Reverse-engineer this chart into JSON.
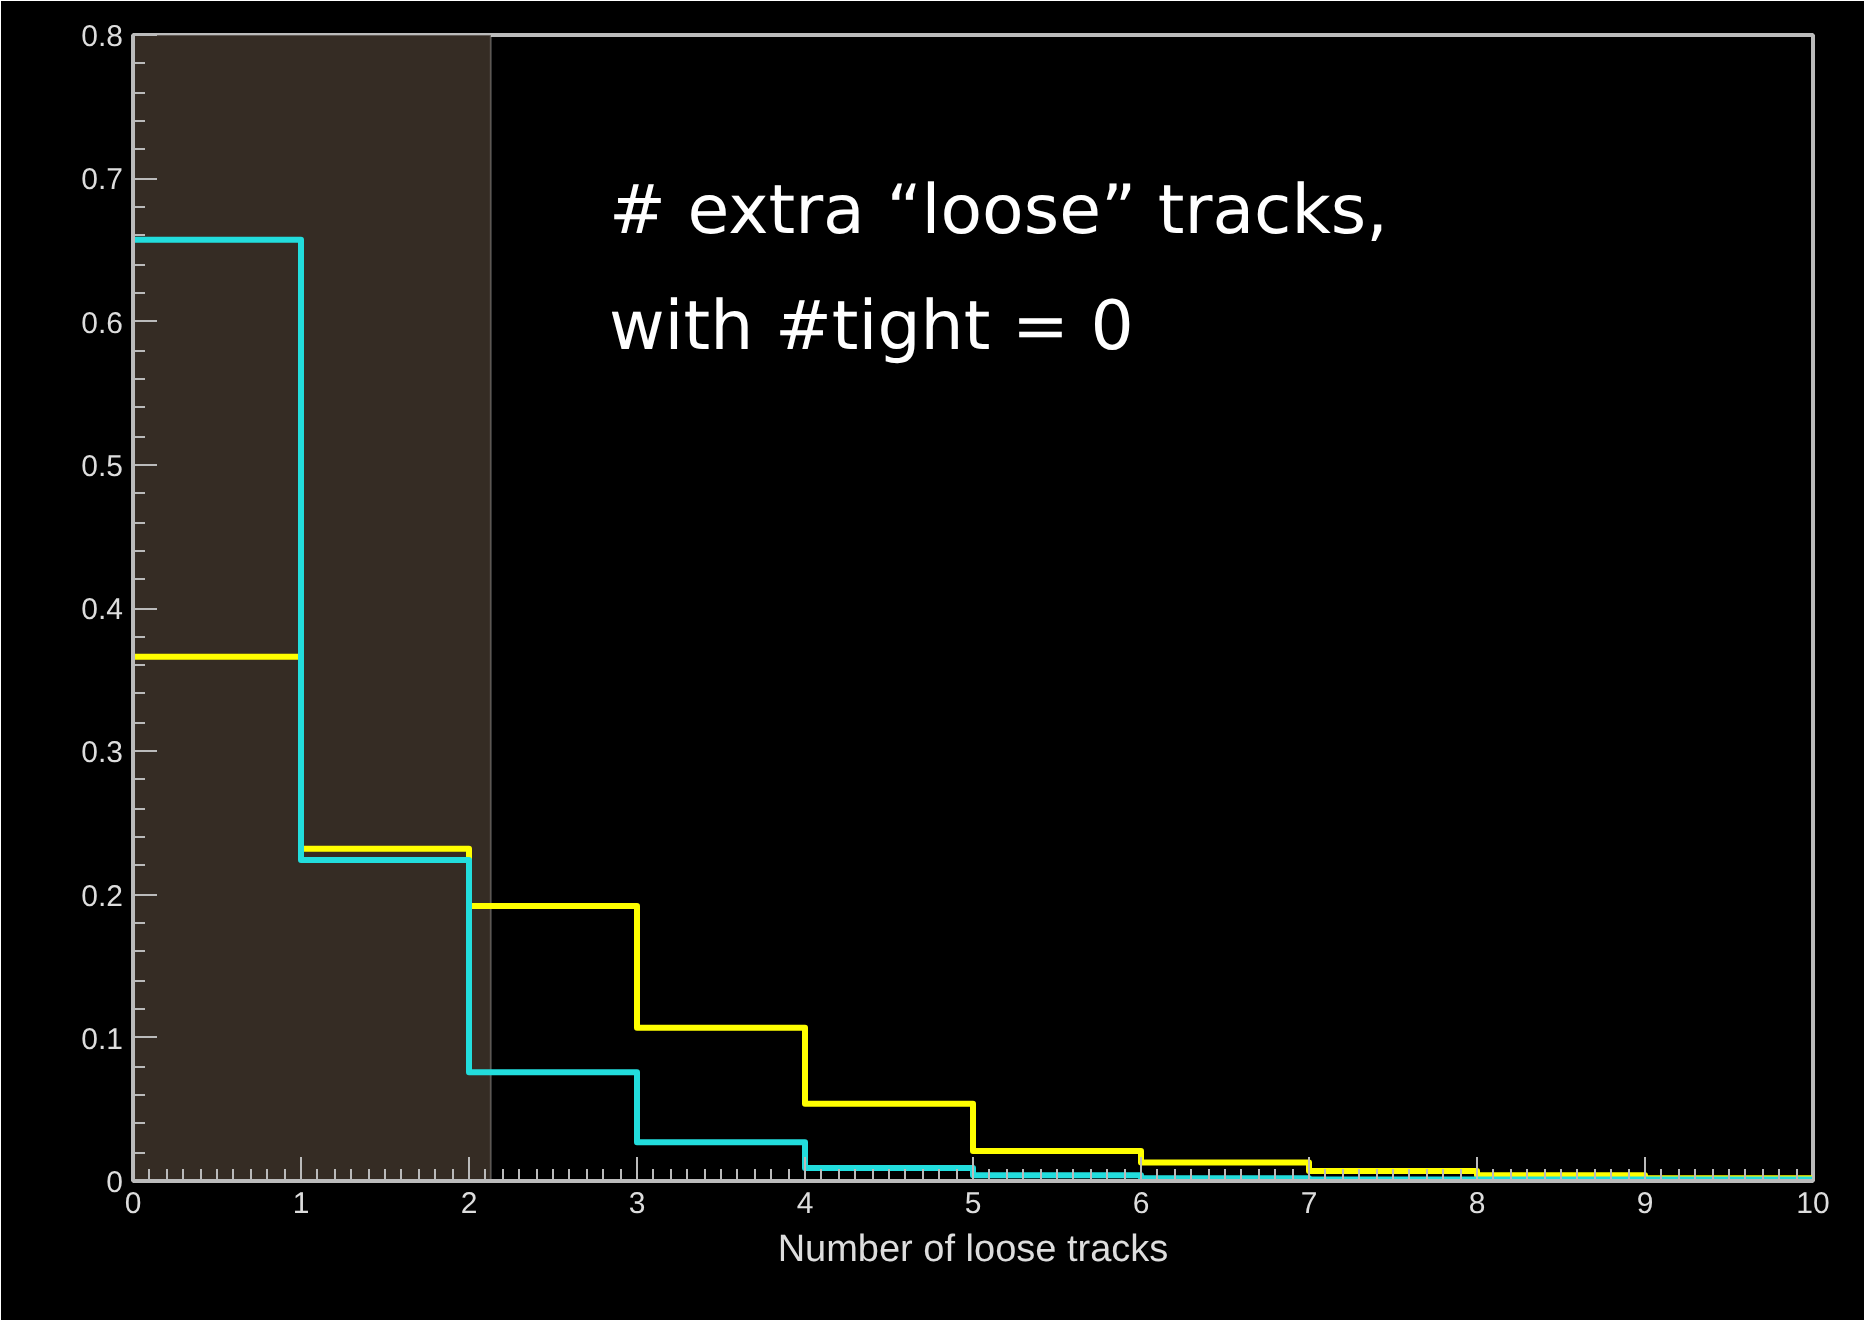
{
  "chart_data": {
    "type": "histogram",
    "xlabel": "Number of loose tracks",
    "bins": [
      0,
      1,
      2,
      3,
      4,
      5,
      6,
      7,
      8,
      9,
      10
    ],
    "series": [
      {
        "color": "#ffff00",
        "values": [
          0.366,
          0.232,
          0.192,
          0.107,
          0.054,
          0.021,
          0.013,
          0.007,
          0.004,
          0.002
        ]
      },
      {
        "color": "#22dddd",
        "values": [
          0.657,
          0.224,
          0.076,
          0.027,
          0.009,
          0.004,
          0.002,
          0.001,
          0.001,
          0.001
        ]
      }
    ],
    "xlim": [
      0,
      10
    ],
    "ylim": [
      0,
      0.8
    ],
    "xticks": [
      0,
      1,
      2,
      3,
      4,
      5,
      6,
      7,
      8,
      9,
      10
    ],
    "yticks": [
      0,
      0.1,
      0.2,
      0.3,
      0.4,
      0.5,
      0.6,
      0.7,
      0.8
    ],
    "bands": [
      {
        "axis": "x",
        "from": 0,
        "to": 2.13,
        "color": "#352c24"
      }
    ],
    "annotations": [
      "# extra “loose” tracks,\nwith #tight = 0"
    ]
  }
}
